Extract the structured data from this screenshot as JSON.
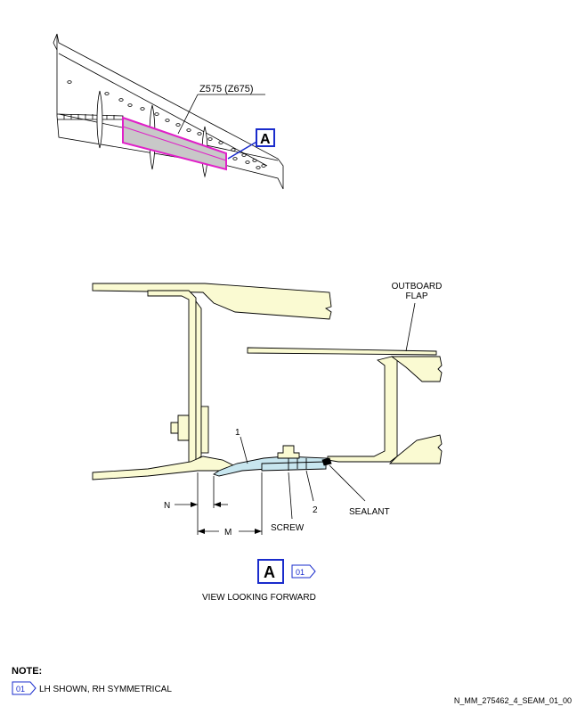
{
  "colors": {
    "structure_fill": "#fafad2",
    "seal_fill": "#c8e6ef",
    "highlight": "#e020c8",
    "callout_blue": "#1a2ccc",
    "panel_gray": "#c8c8c8",
    "line": "#000000"
  },
  "wing_view": {
    "zone_label": "Z575 (Z675)",
    "view_callout": "A"
  },
  "section": {
    "outboard_flap_label": "OUTBOARD\nFLAP",
    "item_1": "1",
    "item_2": "2",
    "sealant_label": "SEALANT",
    "screw_label": "SCREW",
    "dim_n": "N",
    "dim_m": "M"
  },
  "view_caption": {
    "callout": "A",
    "note_ref": "01",
    "title": "VIEW LOOKING FORWARD"
  },
  "notes": {
    "heading": "NOTE:",
    "items": [
      {
        "ref": "01",
        "text": "LH SHOWN, RH SYMMETRICAL"
      }
    ]
  },
  "figure_id": "N_MM_275462_4_SEAM_01_00"
}
